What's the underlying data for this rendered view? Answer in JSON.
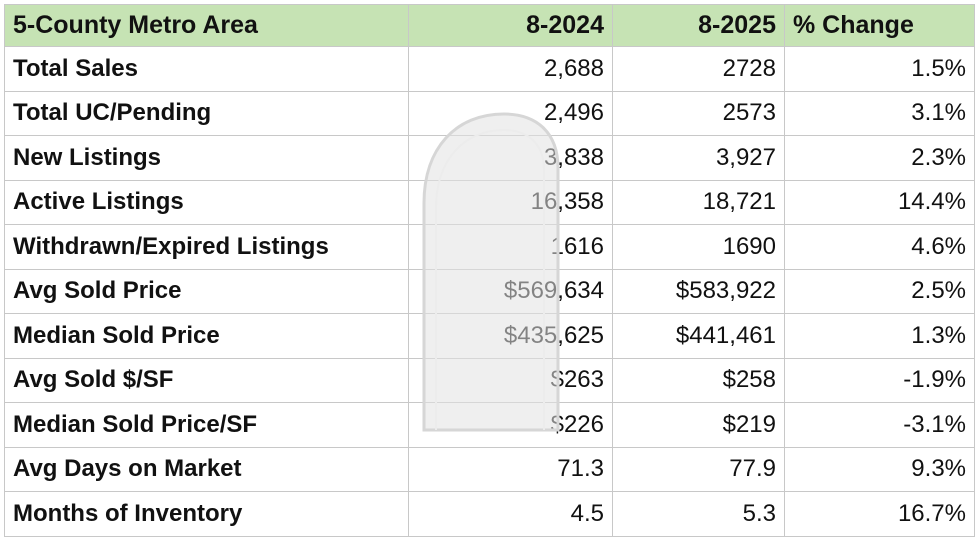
{
  "table": {
    "headers": [
      "5-County Metro Area",
      "8-2024",
      "8-2025",
      "% Change"
    ],
    "rows": [
      [
        "Total Sales",
        "2,688",
        "2728",
        "1.5%"
      ],
      [
        "Total UC/Pending",
        "2,496",
        "2573",
        "3.1%"
      ],
      [
        "New Listings",
        "3,838",
        "3,927",
        "2.3%"
      ],
      [
        "Active Listings",
        "16,358",
        "18,721",
        "14.4%"
      ],
      [
        "Withdrawn/Expired Listings",
        "1616",
        "1690",
        "4.6%"
      ],
      [
        "Avg Sold Price",
        "$569,634",
        "$583,922",
        "2.5%"
      ],
      [
        "Median Sold Price",
        "$435,625",
        "$441,461",
        "1.3%"
      ],
      [
        "Avg Sold $/SF",
        "$263",
        "$258",
        "-1.9%"
      ],
      [
        "Median Sold Price/SF",
        "$226",
        "$219",
        "-3.1%"
      ],
      [
        "Avg Days on Market",
        "71.3",
        "77.9",
        "9.3%"
      ],
      [
        "Months of Inventory",
        "4.5",
        "5.3",
        "16.7%"
      ]
    ]
  },
  "colors": {
    "header_bg": "#c6e3b4",
    "grid": "#c8c8c8",
    "text": "#111111"
  },
  "watermark_icon": "arch-tombstone-icon"
}
